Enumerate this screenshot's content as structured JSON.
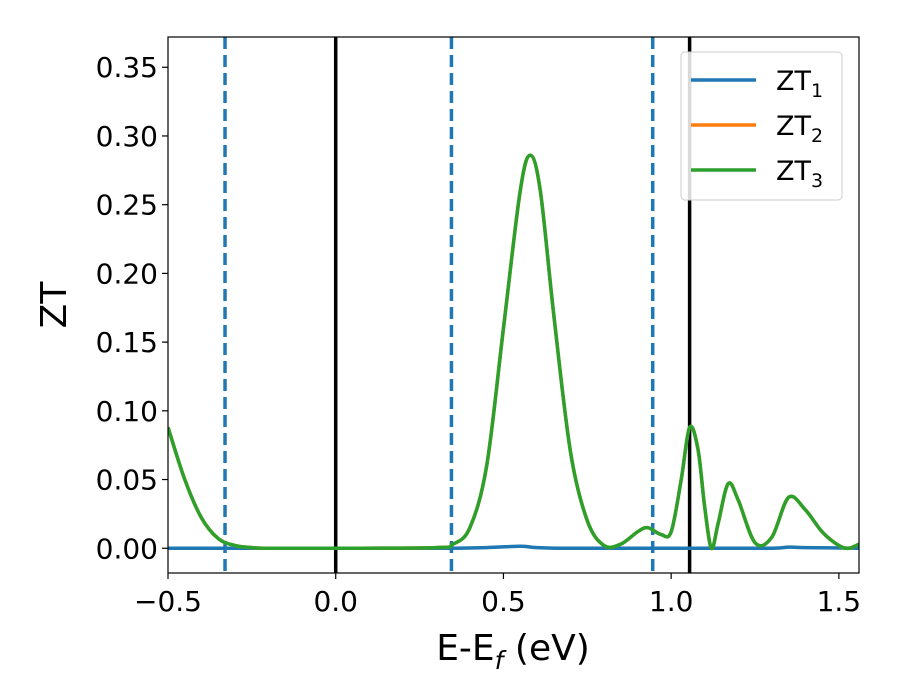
{
  "chart_data": {
    "type": "line",
    "xlabel": "E-E",
    "xlabel_sub": "f",
    "xlabel_suffix": " (eV)",
    "ylabel": "ZT",
    "xlim": [
      -0.5,
      1.56
    ],
    "ylim": [
      -0.018,
      0.372
    ],
    "xticks": [
      -0.5,
      0.0,
      0.5,
      1.0,
      1.5
    ],
    "xtick_labels": [
      "−0.5",
      "0.0",
      "0.5",
      "1.0",
      "1.5"
    ],
    "yticks": [
      0.0,
      0.05,
      0.1,
      0.15,
      0.2,
      0.25,
      0.3,
      0.35
    ],
    "ytick_labels": [
      "0.00",
      "0.05",
      "0.10",
      "0.15",
      "0.20",
      "0.25",
      "0.30",
      "0.35"
    ],
    "grid": false,
    "legend_position": "top-right",
    "vlines_solid": [
      0.0,
      1.055
    ],
    "vlines_dashed": [
      -0.33,
      0.345,
      0.945
    ],
    "series": [
      {
        "name": "ZT",
        "name_sub": "1",
        "color": "#1f77b4",
        "x": [
          -0.5,
          0.0,
          0.3,
          0.45,
          0.55,
          0.6,
          0.7,
          0.9,
          1.1,
          1.3,
          1.35,
          1.4,
          1.56
        ],
        "y": [
          0.0,
          0.0,
          0.0,
          0.0005,
          0.0015,
          0.0005,
          0.0,
          0.0,
          0.0,
          0.0,
          0.0008,
          0.0005,
          0.0
        ]
      },
      {
        "name": "ZT",
        "name_sub": "2",
        "color": "#ff7f0e",
        "x": [
          -0.5,
          -0.45,
          -0.4,
          -0.35,
          -0.3,
          -0.25,
          -0.2,
          0.0,
          0.3,
          0.35,
          0.4,
          0.45,
          0.5,
          0.55,
          0.58,
          0.61,
          0.65,
          0.7,
          0.75,
          0.8,
          0.85,
          0.9,
          0.93,
          0.97,
          1.0,
          1.03,
          1.055,
          1.08,
          1.1,
          1.12,
          1.14,
          1.17,
          1.2,
          1.25,
          1.3,
          1.35,
          1.4,
          1.45,
          1.5,
          1.53,
          1.56
        ],
        "y": [
          0.088,
          0.05,
          0.022,
          0.007,
          0.002,
          0.0005,
          0.0,
          0.0,
          0.0005,
          0.003,
          0.015,
          0.06,
          0.16,
          0.26,
          0.286,
          0.26,
          0.17,
          0.07,
          0.02,
          0.002,
          0.003,
          0.012,
          0.015,
          0.01,
          0.012,
          0.05,
          0.088,
          0.072,
          0.03,
          0.0,
          0.018,
          0.047,
          0.035,
          0.004,
          0.008,
          0.037,
          0.028,
          0.012,
          0.002,
          0.0,
          0.003
        ]
      },
      {
        "name": "ZT",
        "name_sub": "3",
        "color": "#2ca02c",
        "x": [
          -0.5,
          -0.45,
          -0.4,
          -0.35,
          -0.3,
          -0.25,
          -0.2,
          0.0,
          0.3,
          0.35,
          0.4,
          0.45,
          0.5,
          0.55,
          0.58,
          0.61,
          0.65,
          0.7,
          0.75,
          0.8,
          0.85,
          0.9,
          0.93,
          0.97,
          1.0,
          1.03,
          1.055,
          1.08,
          1.1,
          1.12,
          1.14,
          1.17,
          1.2,
          1.25,
          1.3,
          1.35,
          1.4,
          1.45,
          1.5,
          1.53,
          1.56
        ],
        "y": [
          0.088,
          0.05,
          0.022,
          0.007,
          0.002,
          0.0005,
          0.0,
          0.0,
          0.0005,
          0.003,
          0.015,
          0.06,
          0.16,
          0.26,
          0.286,
          0.26,
          0.17,
          0.07,
          0.02,
          0.002,
          0.003,
          0.012,
          0.015,
          0.01,
          0.012,
          0.05,
          0.088,
          0.072,
          0.03,
          0.0,
          0.018,
          0.047,
          0.035,
          0.004,
          0.008,
          0.037,
          0.028,
          0.012,
          0.002,
          0.0,
          0.003
        ]
      }
    ]
  }
}
